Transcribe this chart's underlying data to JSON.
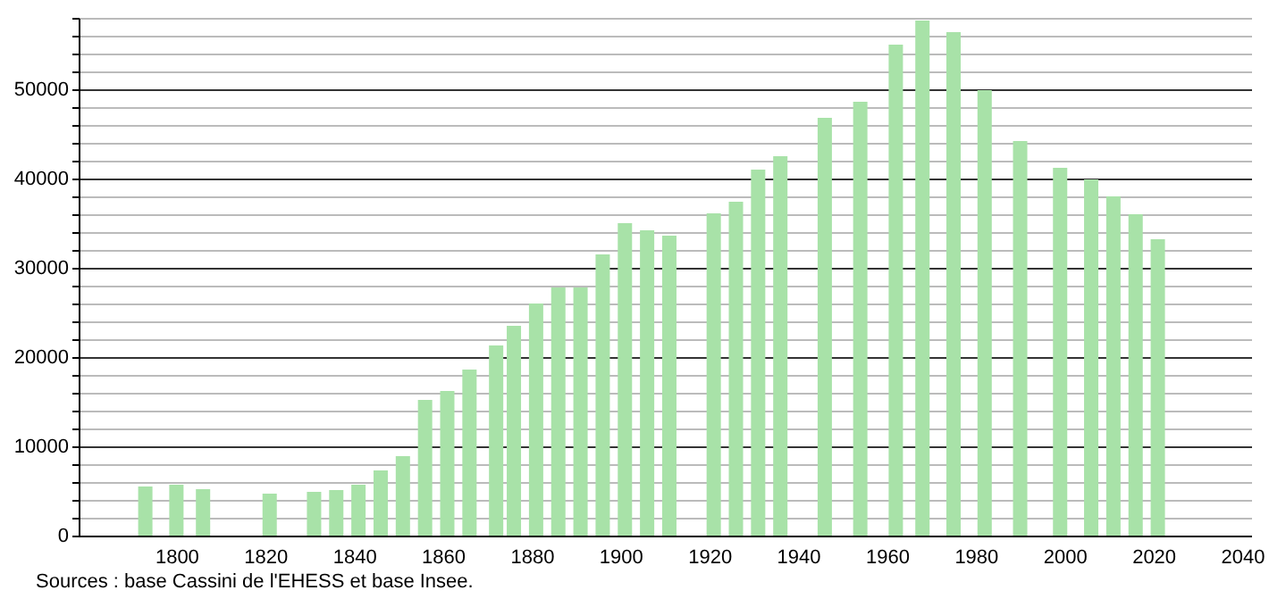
{
  "chart_data": {
    "type": "bar",
    "x": [
      1793,
      1800,
      1806,
      1821,
      1831,
      1836,
      1841,
      1846,
      1851,
      1856,
      1861,
      1866,
      1872,
      1876,
      1881,
      1886,
      1891,
      1896,
      1901,
      1906,
      1911,
      1921,
      1926,
      1931,
      1936,
      1946,
      1954,
      1962,
      1968,
      1975,
      1982,
      1990,
      1999,
      2006,
      2011,
      2016,
      2021
    ],
    "values": [
      5500,
      5700,
      5200,
      4700,
      4900,
      5100,
      5700,
      7300,
      8900,
      15200,
      16200,
      18600,
      21300,
      23500,
      26000,
      27800,
      27800,
      31500,
      35000,
      34200,
      33600,
      36100,
      37400,
      41000,
      42500,
      46800,
      48600,
      55000,
      57700,
      56400,
      49900,
      44200,
      41200,
      39900,
      38000,
      36000,
      33200
    ],
    "color": "#a8e2a8",
    "xlim": [
      1780,
      2040
    ],
    "xticks": [
      1800,
      1820,
      1840,
      1860,
      1880,
      1900,
      1920,
      1940,
      1960,
      1980,
      2000,
      2020,
      2040
    ],
    "ylim": [
      0,
      58000
    ],
    "yticks": [
      0,
      {
        "value": 2000,
        "label": null
      },
      {
        "value": 4000,
        "label": null
      },
      {
        "value": 6000,
        "label": null
      },
      {
        "value": 8000,
        "label": null
      },
      10000,
      {
        "value": 12000,
        "label": null
      },
      {
        "value": 14000,
        "label": null
      },
      {
        "value": 16000,
        "label": null
      },
      {
        "value": 18000,
        "label": null
      },
      20000,
      {
        "value": 22000,
        "label": null
      },
      {
        "value": 24000,
        "label": null
      },
      {
        "value": 26000,
        "label": null
      },
      {
        "value": 28000,
        "label": null
      },
      30000,
      {
        "value": 32000,
        "label": null
      },
      {
        "value": 34000,
        "label": null
      },
      {
        "value": 36000,
        "label": null
      },
      {
        "value": 38000,
        "label": null
      },
      40000,
      {
        "value": 42000,
        "label": null
      },
      {
        "value": 44000,
        "label": null
      },
      {
        "value": 46000,
        "label": null
      },
      {
        "value": 48000,
        "label": null
      },
      50000,
      {
        "value": 52000,
        "label": null
      },
      {
        "value": 54000,
        "label": null
      },
      {
        "value": 56000,
        "label": null
      },
      {
        "value": 58000,
        "label": null
      }
    ],
    "grid": "y",
    "annotations": [
      "Sources : base Cassini de l'EHESS et base Insee."
    ]
  }
}
